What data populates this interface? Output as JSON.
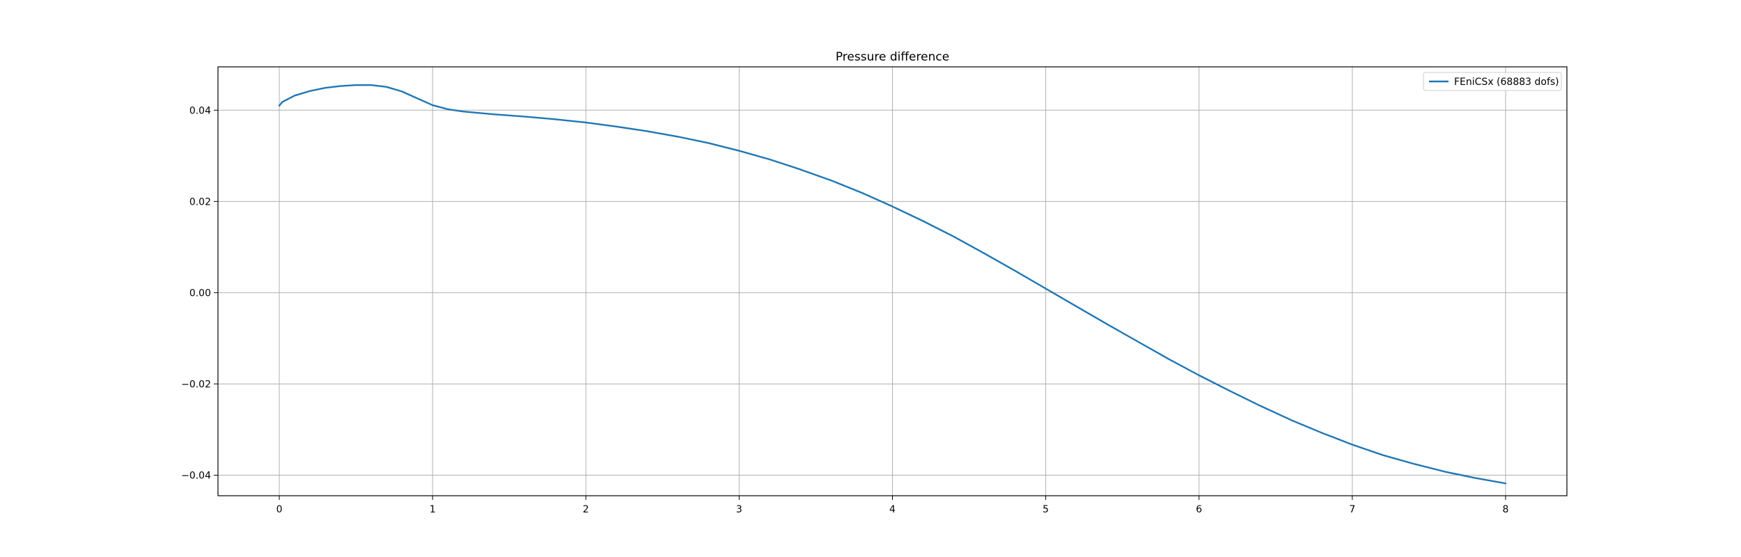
{
  "chart_data": {
    "type": "line",
    "title": "Pressure difference",
    "xlabel": "",
    "ylabel": "",
    "xlim": [
      -0.4,
      8.4
    ],
    "ylim": [
      -0.0445,
      0.0495
    ],
    "xticks": [
      0,
      1,
      2,
      3,
      4,
      5,
      6,
      7,
      8
    ],
    "yticks": [
      -0.04,
      -0.02,
      0.0,
      0.02,
      0.04
    ],
    "xtick_labels": [
      "0",
      "1",
      "2",
      "3",
      "4",
      "5",
      "6",
      "7",
      "8"
    ],
    "ytick_labels": [
      "−0.04",
      "−0.02",
      "0.00",
      "0.02",
      "0.04"
    ],
    "grid": true,
    "legend_position": "top-right",
    "series": [
      {
        "name": "FEniCSx (68883 dofs)",
        "color": "#1f77b4",
        "x": [
          0.0,
          0.02,
          0.1,
          0.2,
          0.3,
          0.4,
          0.5,
          0.6,
          0.7,
          0.8,
          0.9,
          1.0,
          1.1,
          1.2,
          1.4,
          1.6,
          1.8,
          2.0,
          2.2,
          2.4,
          2.6,
          2.8,
          3.0,
          3.2,
          3.4,
          3.6,
          3.8,
          4.0,
          4.2,
          4.4,
          4.6,
          4.8,
          5.0,
          5.2,
          5.4,
          5.6,
          5.8,
          6.0,
          6.2,
          6.4,
          6.6,
          6.8,
          7.0,
          7.2,
          7.4,
          7.6,
          7.8,
          8.0
        ],
        "y": [
          0.041,
          0.0418,
          0.0432,
          0.0442,
          0.0449,
          0.0453,
          0.0455,
          0.0455,
          0.0451,
          0.0441,
          0.0426,
          0.0411,
          0.0402,
          0.0397,
          0.0391,
          0.0386,
          0.038,
          0.0373,
          0.0364,
          0.0354,
          0.0342,
          0.0328,
          0.0311,
          0.0292,
          0.027,
          0.0246,
          0.0219,
          0.0189,
          0.0157,
          0.0123,
          0.0086,
          0.0048,
          0.0009,
          -0.003,
          -0.0069,
          -0.0107,
          -0.0145,
          -0.0181,
          -0.0215,
          -0.0248,
          -0.0279,
          -0.0307,
          -0.0333,
          -0.0356,
          -0.0375,
          -0.0392,
          -0.0406,
          -0.0418
        ]
      }
    ]
  }
}
